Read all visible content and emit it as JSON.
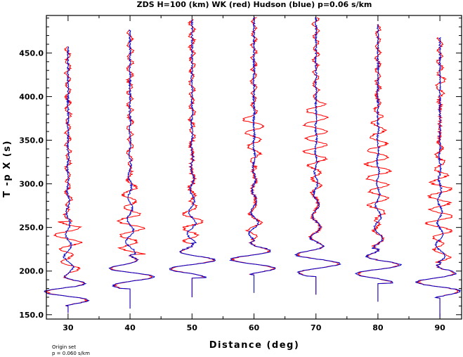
{
  "chart_data": {
    "type": "line",
    "title": "ZDS H=100 (km) WK (red) Hudson (blue) p=0.06 s/km",
    "xlabel": "Distance (deg)",
    "ylabel": "T -p X (s)",
    "xlim": [
      26.5,
      93.5
    ],
    "ylim": [
      145,
      493
    ],
    "x_ticks": [
      30,
      40,
      50,
      60,
      70,
      80,
      90
    ],
    "y_ticks": [
      150.0,
      200.0,
      250.0,
      300.0,
      350.0,
      400.0,
      450.0
    ],
    "y_tick_labels": [
      "150.0",
      "200.0",
      "250.0",
      "300.0",
      "350.0",
      "400.0",
      "450.0"
    ],
    "series": [
      {
        "color": "#ff0000"
      },
      {
        "color": "#0000cc"
      }
    ],
    "traces": [
      {
        "distance": 30,
        "start": 152,
        "end": 458,
        "first_arrival": 161,
        "main_end": 198,
        "wk_noise_top": 257
      },
      {
        "distance": 40,
        "start": 157,
        "end": 477,
        "first_arrival": 181,
        "main_end": 219,
        "wk_noise_top": 318
      },
      {
        "distance": 50,
        "start": 170,
        "end": 489,
        "first_arrival": 193,
        "main_end": 232,
        "wk_noise_top": 350
      },
      {
        "distance": 60,
        "start": 175,
        "end": 491,
        "first_arrival": 197,
        "main_end": 236,
        "wk_noise_top": 378
      },
      {
        "distance": 70,
        "start": 173,
        "end": 491,
        "first_arrival": 195,
        "main_end": 235,
        "wk_noise_top": 395
      },
      {
        "distance": 80,
        "start": 165,
        "end": 483,
        "first_arrival": 187,
        "main_end": 226,
        "wk_noise_top": 408
      },
      {
        "distance": 90,
        "start": 147,
        "end": 468,
        "first_arrival": 170,
        "main_end": 210,
        "wk_noise_top": 423
      }
    ],
    "grid": false,
    "legend": "none"
  },
  "footnote": {
    "line1": "Origin set",
    "line2": "p = 0.060 s/km"
  }
}
